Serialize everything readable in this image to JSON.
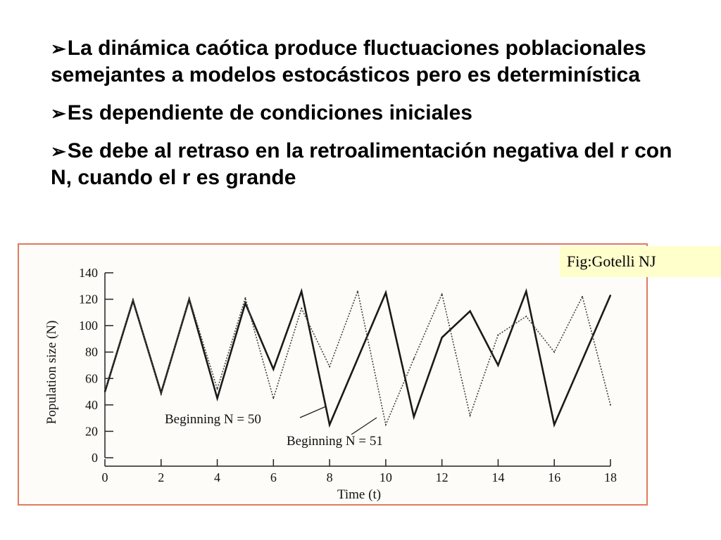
{
  "slide": {
    "bullets": [
      {
        "arrow": "➢",
        "text": "La dinámica caótica produce fluctuaciones poblacionales semejantes a modelos estocásticos pero es determinística"
      },
      {
        "arrow": "➢",
        "text": "Es dependiente de condiciones iniciales"
      },
      {
        "arrow": "➢",
        "text": "Se debe al retraso en la retroalimentación negativa del r con N, cuando el r es grande"
      }
    ],
    "credit": "Fig:Gotelli NJ"
  },
  "chart_data": {
    "type": "line",
    "xlabel": "Time (t)",
    "ylabel": "Population size (N)",
    "xlim": [
      0,
      18
    ],
    "ylim": [
      0,
      140
    ],
    "xticks": [
      0,
      2,
      4,
      6,
      8,
      10,
      12,
      14,
      16,
      18
    ],
    "yticks": [
      0,
      20,
      40,
      60,
      80,
      100,
      120,
      140
    ],
    "grid": false,
    "series": [
      {
        "name": "Beginning N = 50",
        "style": "solid",
        "x": [
          0,
          1,
          2,
          3,
          4,
          5,
          6,
          7,
          8,
          9,
          10,
          11,
          12,
          13,
          14,
          15,
          16,
          17,
          18
        ],
        "values": [
          50,
          119,
          49,
          120,
          45,
          117,
          67,
          126,
          25,
          75,
          125,
          31,
          91,
          111,
          70,
          126,
          25,
          74,
          123
        ]
      },
      {
        "name": "Beginning N = 51",
        "style": "dotted",
        "x": [
          0,
          1,
          2,
          3,
          4,
          5,
          6,
          7,
          8,
          9,
          10,
          11,
          12,
          13,
          14,
          15,
          16,
          17,
          18
        ],
        "values": [
          51,
          120,
          48,
          121,
          52,
          121,
          45,
          113,
          69,
          126,
          25,
          75,
          124,
          32,
          93,
          107,
          80,
          122,
          40
        ]
      }
    ],
    "annotations": [
      {
        "text": "Beginning N = 50",
        "series": 0
      },
      {
        "text": "Beginning N = 51",
        "series": 1
      }
    ]
  }
}
